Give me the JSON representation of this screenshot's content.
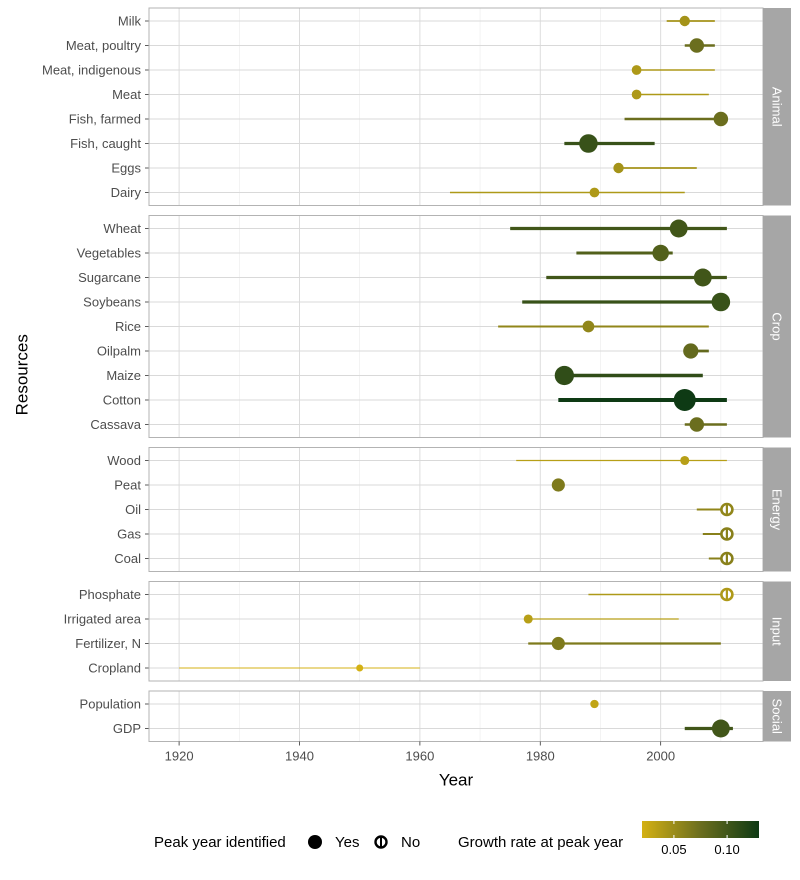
{
  "chart_data": {
    "type": "dot-range",
    "xlabel": "Year",
    "ylabel": "Resources",
    "xlim": [
      1915,
      2017
    ],
    "x_ticks": [
      1920,
      1940,
      1960,
      1980,
      2000
    ],
    "grid": true,
    "growth_range": [
      0.02,
      0.13
    ],
    "colors": {
      "low": "#D4B114",
      "mid": "#6B6E1E",
      "high": "#0E3A14",
      "grid_major": "#D9D9D9",
      "grid_minor": "#EBEBEB",
      "panel_border": "#B3B3B3",
      "strip_bg": "#A6A6A6"
    },
    "facets": [
      {
        "name": "Animal",
        "items": [
          {
            "label": "Milk",
            "peak": 2004,
            "start": 2001,
            "end": 2009,
            "growth": 0.045,
            "identified": true
          },
          {
            "label": "Meat, poultry",
            "peak": 2006,
            "start": 2004,
            "end": 2009,
            "growth": 0.075,
            "identified": true
          },
          {
            "label": "Meat, indigenous",
            "peak": 1996,
            "start": 1996,
            "end": 2009,
            "growth": 0.04,
            "identified": true
          },
          {
            "label": "Meat",
            "peak": 1996,
            "start": 1996,
            "end": 2008,
            "growth": 0.04,
            "identified": true
          },
          {
            "label": "Fish, farmed",
            "peak": 2010,
            "start": 1994,
            "end": 2010,
            "growth": 0.075,
            "identified": true
          },
          {
            "label": "Fish, caught",
            "peak": 1988,
            "start": 1984,
            "end": 1999,
            "growth": 0.105,
            "identified": true
          },
          {
            "label": "Eggs",
            "peak": 1993,
            "start": 1993,
            "end": 2006,
            "growth": 0.045,
            "identified": true
          },
          {
            "label": "Dairy",
            "peak": 1989,
            "start": 1965,
            "end": 2004,
            "growth": 0.04,
            "identified": true
          }
        ]
      },
      {
        "name": "Crop",
        "items": [
          {
            "label": "Wheat",
            "peak": 2003,
            "start": 1975,
            "end": 2011,
            "growth": 0.1,
            "identified": true
          },
          {
            "label": "Vegetables",
            "peak": 2000,
            "start": 1986,
            "end": 2002,
            "growth": 0.09,
            "identified": true
          },
          {
            "label": "Sugarcane",
            "peak": 2007,
            "start": 1981,
            "end": 2011,
            "growth": 0.1,
            "identified": true
          },
          {
            "label": "Soybeans",
            "peak": 2010,
            "start": 1977,
            "end": 2011,
            "growth": 0.105,
            "identified": true
          },
          {
            "label": "Rice",
            "peak": 1988,
            "start": 1973,
            "end": 2008,
            "growth": 0.055,
            "identified": true
          },
          {
            "label": "Oilpalm",
            "peak": 2005,
            "start": 2004,
            "end": 2008,
            "growth": 0.08,
            "identified": true
          },
          {
            "label": "Maize",
            "peak": 1984,
            "start": 1984,
            "end": 2007,
            "growth": 0.11,
            "identified": true
          },
          {
            "label": "Cotton",
            "peak": 2004,
            "start": 1983,
            "end": 2011,
            "growth": 0.13,
            "identified": true
          },
          {
            "label": "Cassava",
            "peak": 2006,
            "start": 2004,
            "end": 2011,
            "growth": 0.075,
            "identified": true
          }
        ]
      },
      {
        "name": "Energy",
        "items": [
          {
            "label": "Wood",
            "peak": 2004,
            "start": 1976,
            "end": 2011,
            "growth": 0.035,
            "identified": true
          },
          {
            "label": "Peat",
            "peak": 1983,
            "start": 1983,
            "end": 1983,
            "growth": 0.065,
            "identified": true
          },
          {
            "label": "Oil",
            "peak": 2011,
            "start": 2006,
            "end": 2011,
            "growth": 0.055,
            "identified": false
          },
          {
            "label": "Gas",
            "peak": 2011,
            "start": 2007,
            "end": 2011,
            "growth": 0.06,
            "identified": false
          },
          {
            "label": "Coal",
            "peak": 2011,
            "start": 2008,
            "end": 2011,
            "growth": 0.06,
            "identified": false
          }
        ]
      },
      {
        "name": "Input",
        "items": [
          {
            "label": "Phosphate",
            "peak": 2011,
            "start": 1988,
            "end": 2011,
            "growth": 0.04,
            "identified": false
          },
          {
            "label": "Irrigated area",
            "peak": 1978,
            "start": 1978,
            "end": 2003,
            "growth": 0.035,
            "identified": true
          },
          {
            "label": "Fertilizer, N",
            "peak": 1983,
            "start": 1978,
            "end": 2010,
            "growth": 0.065,
            "identified": true
          },
          {
            "label": "Cropland",
            "peak": 1950,
            "start": 1920,
            "end": 1960,
            "growth": 0.02,
            "identified": true
          }
        ]
      },
      {
        "name": "Social",
        "items": [
          {
            "label": "Population",
            "peak": 1989,
            "start": 1989,
            "end": 1989,
            "growth": 0.03,
            "identified": true
          },
          {
            "label": "GDP",
            "peak": 2010,
            "start": 2004,
            "end": 2012,
            "growth": 0.1,
            "identified": true
          }
        ]
      }
    ],
    "legend": {
      "shape_title": "Peak year identified",
      "shape_entries": [
        "Yes",
        "No"
      ],
      "color_title": "Growth rate at peak year",
      "color_ticks": [
        0.05,
        0.1
      ],
      "color_tick_labels": [
        "0.05",
        "0.10"
      ]
    }
  }
}
